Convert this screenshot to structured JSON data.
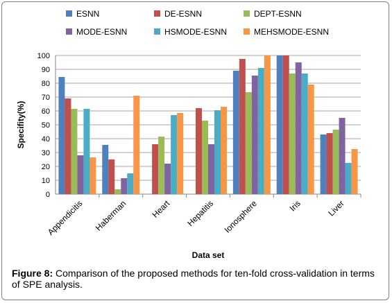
{
  "chart_data": {
    "type": "bar",
    "xlabel": "Data set",
    "ylabel": "Specifity(%)",
    "ylim": [
      0,
      100
    ],
    "yticks": [
      "0",
      "10",
      "20",
      "30",
      "40",
      "50",
      "60",
      "70",
      "80",
      "90",
      "100"
    ],
    "categories": [
      "Appendicitis",
      "Haberman",
      "Heart",
      "Hepatitis",
      "Ionosphere",
      "Iris",
      "Liver"
    ],
    "grid": "horizontal",
    "legend_position": "top",
    "series": [
      {
        "name": "ESNN",
        "color": "#4f81bd",
        "values": [
          84.5,
          35.5,
          0,
          0,
          89,
          100,
          43
        ]
      },
      {
        "name": "DE-ESNN",
        "color": "#c0504d",
        "values": [
          69,
          25,
          36,
          62,
          97.5,
          100,
          44
        ]
      },
      {
        "name": "DEPT-ESNN",
        "color": "#9bbb59",
        "values": [
          61.5,
          3.5,
          41.5,
          53,
          73.5,
          87,
          46.5
        ]
      },
      {
        "name": "MODE-ESNN",
        "color": "#8064a2",
        "values": [
          28,
          11.5,
          22,
          36,
          85.5,
          95,
          55
        ]
      },
      {
        "name": "HSMODE-ESNN",
        "color": "#4bacc6",
        "values": [
          61.5,
          15,
          57,
          60.5,
          91,
          87,
          22.5
        ]
      },
      {
        "name": "MEHSMODE-ESNN",
        "color": "#f79646",
        "values": [
          26.5,
          71,
          58.5,
          63,
          100,
          79,
          32.5
        ]
      }
    ]
  },
  "caption": {
    "figure_label": "Figure 8:",
    "text": " Comparison of the proposed methods for ten-fold cross-validation in terms of SPE analysis."
  }
}
